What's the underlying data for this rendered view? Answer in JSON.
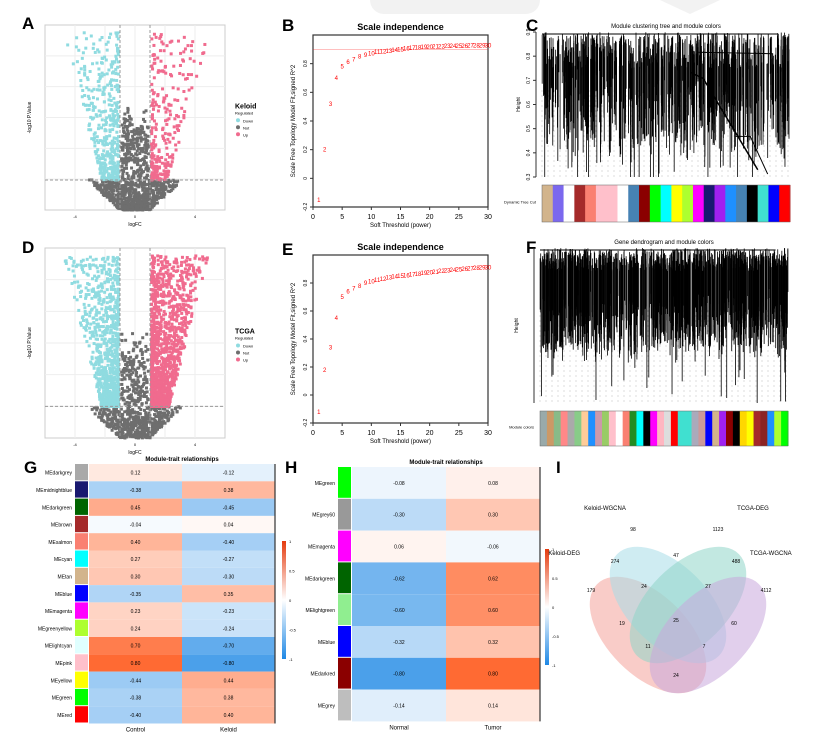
{
  "figure": {
    "panels": [
      "A",
      "B",
      "C",
      "D",
      "E",
      "F",
      "G",
      "H",
      "I"
    ]
  },
  "chart_data": [
    {
      "id": "A",
      "type": "scatter",
      "subtype": "volcano",
      "title": "",
      "xlabel": "logFC",
      "ylabel": "-log10 P.Value",
      "legend": {
        "title": "Keloid",
        "subtitle": "Regulated",
        "placement": "right",
        "entries": [
          {
            "label": "Down",
            "color": "#8fdbe0"
          },
          {
            "label": "Not",
            "color": "#6e6e6e"
          },
          {
            "label": "Up",
            "color": "#f06b8e"
          }
        ]
      },
      "xlim": [
        -6,
        6
      ],
      "ylim": [
        0,
        8
      ],
      "threshold_logfc": 1,
      "threshold_p": 1.3,
      "counts_hint": {
        "down": 420,
        "not": 900,
        "up": 260
      }
    },
    {
      "id": "B",
      "type": "scatter",
      "title": "Scale independence",
      "xlabel": "Soft Threshold (power)",
      "ylabel": "Scale Free Topology Model Fit,signed R^2",
      "xticks": [
        0,
        5,
        10,
        15,
        20,
        25,
        30
      ],
      "xlim": [
        0,
        30
      ],
      "ylim": [
        -0.2,
        1.0
      ],
      "cutoff": 0.9,
      "x": [
        1,
        2,
        3,
        4,
        5,
        6,
        7,
        8,
        9,
        10,
        11,
        12,
        13,
        14,
        15,
        16,
        17,
        18,
        19,
        20,
        21,
        22,
        23,
        24,
        25,
        26,
        27,
        28,
        29,
        30
      ],
      "y": [
        -0.15,
        0.2,
        0.52,
        0.7,
        0.78,
        0.81,
        0.83,
        0.85,
        0.86,
        0.87,
        0.88,
        0.885,
        0.89,
        0.895,
        0.9,
        0.905,
        0.91,
        0.912,
        0.915,
        0.918,
        0.92,
        0.921,
        0.922,
        0.923,
        0.924,
        0.925,
        0.926,
        0.926,
        0.927,
        0.927
      ],
      "point_color": "#ff0000"
    },
    {
      "id": "C",
      "type": "dendrogram",
      "title": "Module clustering tree and module colors",
      "ylabel": "Height",
      "yticks": [
        0.3,
        0.4,
        0.5,
        0.6,
        0.7,
        0.8,
        0.9
      ],
      "row_label": "Dynamic Tree Cut",
      "module_colors": [
        "#d2b48c",
        "#7b68ee",
        "#ffffff",
        "#a52a2a",
        "#fa8072",
        "#ffc0cb",
        "#ffc0cb",
        "#ffffff",
        "#4682b4",
        "#8b0000",
        "#00ff00",
        "#00ffff",
        "#ffff00",
        "#adff2f",
        "#ff00ff",
        "#191970",
        "#a020f0",
        "#1e90ff",
        "#4682b4",
        "#000000",
        "#40e0d0",
        "#0000ff",
        "#ff0000"
      ]
    },
    {
      "id": "D",
      "type": "scatter",
      "subtype": "volcano",
      "title": "",
      "xlabel": "logFC",
      "ylabel": "-log10 P.Value",
      "legend": {
        "title": "TCGA",
        "subtitle": "Regulated",
        "placement": "right",
        "entries": [
          {
            "label": "Down",
            "color": "#8fdbe0"
          },
          {
            "label": "Not",
            "color": "#6e6e6e"
          },
          {
            "label": "Up",
            "color": "#f06b8e"
          }
        ]
      },
      "xlim": [
        -6,
        6
      ],
      "ylim": [
        0,
        60
      ],
      "threshold_logfc": 1,
      "threshold_p": 10,
      "counts_hint": {
        "down": 900,
        "not": 700,
        "up": 1400
      }
    },
    {
      "id": "E",
      "type": "scatter",
      "title": "Scale independence",
      "xlabel": "Soft Threshold (power)",
      "ylabel": "Scale Free Topology Model Fit,signed R^2",
      "xticks": [
        0,
        5,
        10,
        15,
        20,
        25,
        30
      ],
      "xlim": [
        0,
        30
      ],
      "ylim": [
        -0.2,
        1.0
      ],
      "x": [
        1,
        2,
        3,
        4,
        5,
        6,
        7,
        8,
        9,
        10,
        11,
        12,
        13,
        14,
        15,
        16,
        17,
        18,
        19,
        20,
        21,
        22,
        23,
        24,
        25,
        26,
        27,
        28,
        29,
        30
      ],
      "y": [
        -0.12,
        0.18,
        0.34,
        0.55,
        0.7,
        0.74,
        0.76,
        0.78,
        0.8,
        0.81,
        0.82,
        0.83,
        0.84,
        0.845,
        0.85,
        0.855,
        0.86,
        0.865,
        0.87,
        0.875,
        0.88,
        0.885,
        0.89,
        0.893,
        0.896,
        0.9,
        0.903,
        0.906,
        0.909,
        0.912
      ],
      "point_color": "#ff0000"
    },
    {
      "id": "F",
      "type": "dendrogram",
      "title": "Gene dendrogram and module colors",
      "ylabel": "Height",
      "row_label": "Module colors",
      "module_colors": [
        "#9aa",
        "#c96",
        "#8b8",
        "#f88",
        "#aaa",
        "#8c8",
        "#fc9",
        "#1e90ff",
        "#c9a",
        "#9c6",
        "#ffc0cb",
        "#fff",
        "#fa8072",
        "#228b22",
        "#0ff",
        "#000",
        "#f0f",
        "#ffb6c1",
        "#ddd",
        "#ff0000",
        "#40e0d0",
        "#40e0d0",
        "#aab",
        "#c99",
        "#0000ff",
        "#d2b48c",
        "#a020f0",
        "#8b0000",
        "#000",
        "#ffd700",
        "#ffff00",
        "#a52a2a",
        "#8b2323",
        "#1e90ff",
        "#adff2f",
        "#00ff00"
      ]
    },
    {
      "id": "G",
      "type": "heatmap",
      "title": "Module-trait relationships",
      "columns": [
        "Control",
        "Keloid"
      ],
      "rows": [
        {
          "label": "MEdarkgrey",
          "color": "#a9a9a9",
          "values": [
            0.12,
            -0.12
          ]
        },
        {
          "label": "MEmidnightblue",
          "color": "#191970",
          "values": [
            -0.38,
            0.38
          ]
        },
        {
          "label": "MEdarkgreen",
          "color": "#006400",
          "values": [
            0.45,
            -0.45
          ]
        },
        {
          "label": "MEbrown",
          "color": "#a52a2a",
          "values": [
            -0.04,
            0.04
          ]
        },
        {
          "label": "MEsalmon",
          "color": "#fa8072",
          "values": [
            0.4,
            -0.4
          ]
        },
        {
          "label": "MEcyan",
          "color": "#00ffff",
          "values": [
            0.27,
            -0.27
          ]
        },
        {
          "label": "MEtan",
          "color": "#d2b48c",
          "values": [
            0.3,
            -0.3
          ]
        },
        {
          "label": "MEblue",
          "color": "#0000ff",
          "values": [
            -0.35,
            0.35
          ]
        },
        {
          "label": "MEmagenta",
          "color": "#ff00ff",
          "values": [
            0.23,
            -0.23
          ]
        },
        {
          "label": "MEgreenyellow",
          "color": "#adff2f",
          "values": [
            0.24,
            -0.24
          ]
        },
        {
          "label": "MElightcyan",
          "color": "#e0ffff",
          "values": [
            0.7,
            -0.7
          ]
        },
        {
          "label": "MEpink",
          "color": "#ffc0cb",
          "values": [
            0.8,
            -0.8
          ]
        },
        {
          "label": "MEyellow",
          "color": "#ffff00",
          "values": [
            -0.44,
            0.44
          ]
        },
        {
          "label": "MEgreen",
          "color": "#00ff00",
          "values": [
            -0.38,
            0.38
          ]
        },
        {
          "label": "MEred",
          "color": "#ff0000",
          "values": [
            -0.4,
            0.4
          ]
        }
      ],
      "colorbar": {
        "min": -1,
        "max": 1,
        "ticks": [
          -1,
          -0.5,
          0,
          0.5,
          1
        ]
      }
    },
    {
      "id": "H",
      "type": "heatmap",
      "title": "Module-trait relationships",
      "columns": [
        "Normal",
        "Tumor"
      ],
      "rows": [
        {
          "label": "MEgreen",
          "color": "#00ff00",
          "values": [
            -0.08,
            0.08
          ]
        },
        {
          "label": "MEgrey60",
          "color": "#999999",
          "values": [
            -0.3,
            0.3
          ]
        },
        {
          "label": "MEmagenta",
          "color": "#ff00ff",
          "values": [
            0.06,
            -0.06
          ]
        },
        {
          "label": "MEdarkgreen",
          "color": "#006400",
          "values": [
            -0.62,
            0.62
          ]
        },
        {
          "label": "MElightgreen",
          "color": "#90ee90",
          "values": [
            -0.6,
            0.6
          ]
        },
        {
          "label": "MEblue",
          "color": "#0000ff",
          "values": [
            -0.32,
            0.32
          ]
        },
        {
          "label": "MEdarkred",
          "color": "#8b0000",
          "values": [
            -0.8,
            0.8
          ]
        },
        {
          "label": "MEgrey",
          "color": "#bebebe",
          "values": [
            -0.14,
            0.14
          ]
        }
      ],
      "colorbar": {
        "min": -1,
        "max": 1,
        "ticks": [
          -1,
          -0.5,
          0,
          0.5,
          1
        ]
      }
    },
    {
      "id": "I",
      "type": "venn",
      "sets": [
        {
          "name": "Keloid-DEG",
          "color": "#f4a29a"
        },
        {
          "name": "Keloid-WGCNA",
          "color": "#a8dde8"
        },
        {
          "name": "TCGA-DEG",
          "color": "#8fd6c8"
        },
        {
          "name": "TCGA-WGCNA",
          "color": "#c8a8dc"
        }
      ],
      "regions": [
        {
          "sets": [
            "Keloid-WGCNA"
          ],
          "value": "98"
        },
        {
          "sets": [
            "TCGA-DEG"
          ],
          "value": "1123"
        },
        {
          "sets": [
            "Keloid-DEG"
          ],
          "value": "179"
        },
        {
          "sets": [
            "TCGA-WGCNA"
          ],
          "value": "4112"
        },
        {
          "sets": [
            "Keloid-DEG",
            "Keloid-WGCNA"
          ],
          "value": "274"
        },
        {
          "sets": [
            "Keloid-WGCNA",
            "TCGA-DEG"
          ],
          "value": "47"
        },
        {
          "sets": [
            "TCGA-DEG",
            "TCGA-WGCNA"
          ],
          "value": "488"
        },
        {
          "sets": [
            "Keloid-DEG",
            "Keloid-WGCNA",
            "TCGA-DEG"
          ],
          "value": "24"
        },
        {
          "sets": [
            "Keloid-WGCNA",
            "TCGA-DEG",
            "TCGA-WGCNA"
          ],
          "value": "27"
        },
        {
          "sets": [
            "Keloid-DEG",
            "TCGA-DEG"
          ],
          "value": "19"
        },
        {
          "sets": [
            "Keloid-DEG",
            "Keloid-WGCNA",
            "TCGA-DEG",
            "TCGA-WGCNA"
          ],
          "value": "25"
        },
        {
          "sets": [
            "Keloid-WGCNA",
            "TCGA-WGCNA"
          ],
          "value": "60"
        },
        {
          "sets": [
            "Keloid-DEG",
            "Keloid-WGCNA",
            "TCGA-WGCNA"
          ],
          "value": "11"
        },
        {
          "sets": [
            "Keloid-DEG",
            "TCGA-DEG",
            "TCGA-WGCNA"
          ],
          "value": "7"
        },
        {
          "sets": [
            "Keloid-DEG",
            "TCGA-WGCNA"
          ],
          "value": "24"
        }
      ]
    }
  ]
}
